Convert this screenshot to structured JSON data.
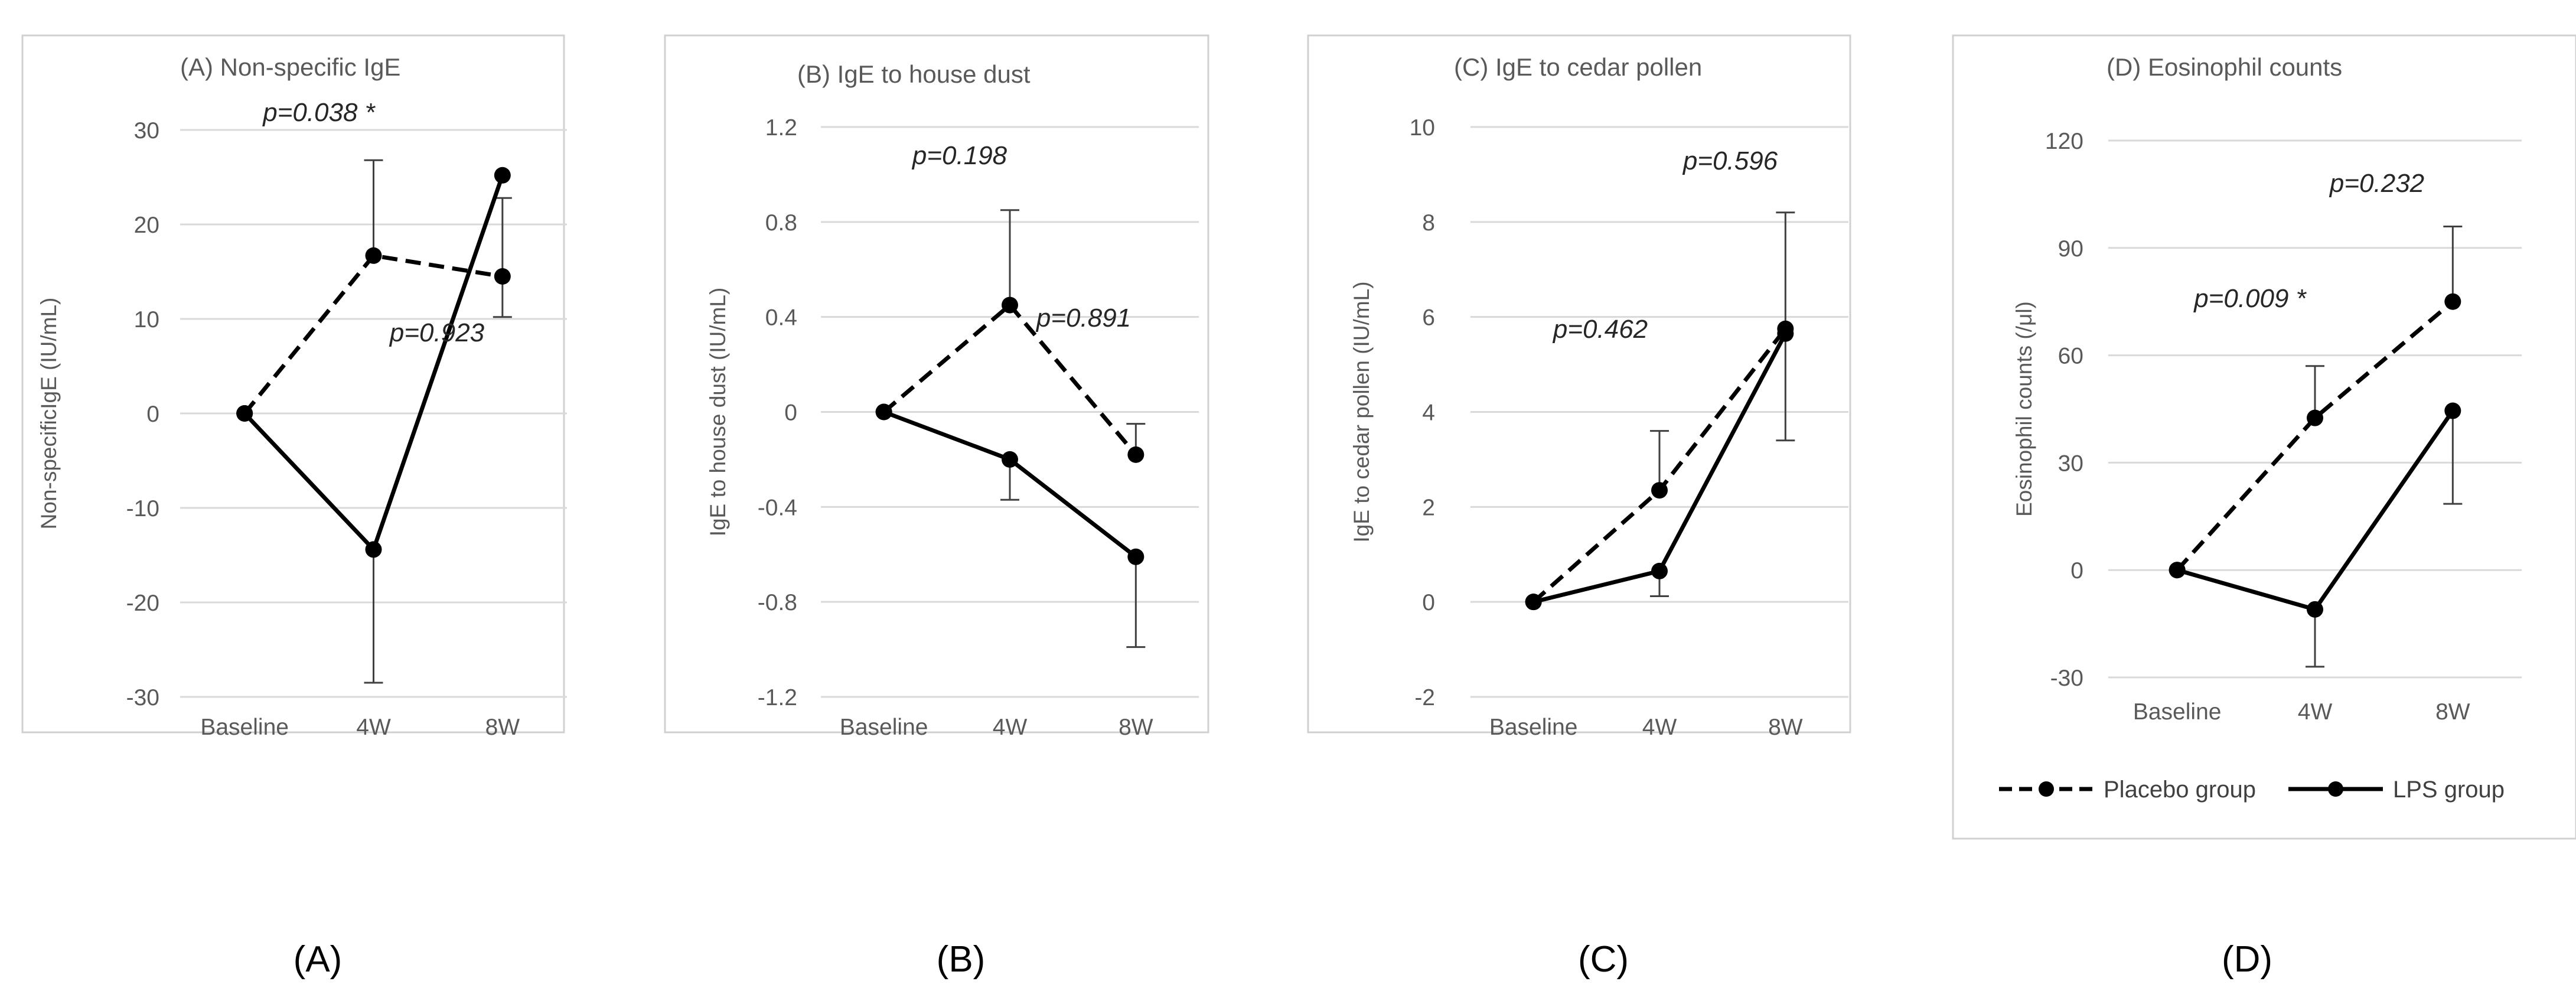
{
  "legend": {
    "placebo_label": "Placebo group",
    "lps_label": "LPS group",
    "placement": "bottom of panel D"
  },
  "chart_data": [
    {
      "type": "line",
      "panel_letter": "(A)",
      "title": "(A) Non-specific IgE",
      "xlabel": "",
      "ylabel": "Non-specificIgE (IU/mL)",
      "categories": [
        "Baseline",
        "4W",
        "8W"
      ],
      "ylim": [
        -30,
        30
      ],
      "yticks": [
        -30,
        -20,
        -10,
        0,
        10,
        20,
        30
      ],
      "ytick_labels": [
        "-30",
        "-20",
        "-10",
        "0",
        "10",
        "20",
        "30"
      ],
      "grid": true,
      "series": [
        {
          "name": "Placebo group",
          "style": "dashed",
          "values": [
            0,
            16.7,
            14.5
          ],
          "error_upper": [
            null,
            26.8,
            22.8
          ],
          "error_lower": [
            null,
            null,
            10.2
          ]
        },
        {
          "name": "LPS group",
          "style": "solid",
          "values": [
            0,
            -14.4,
            25.2
          ],
          "error_upper": [
            null,
            null,
            null
          ],
          "error_lower": [
            null,
            -28.5,
            null
          ]
        }
      ],
      "annotations": [
        {
          "text": "p=0.038 *",
          "at": "4W"
        },
        {
          "text": "p=0.923",
          "at": "8W"
        }
      ]
    },
    {
      "type": "line",
      "panel_letter": "(B)",
      "title": "(B) IgE to house dust",
      "xlabel": "",
      "ylabel": "IgE to house dust (IU/mL)",
      "categories": [
        "Baseline",
        "4W",
        "8W"
      ],
      "ylim": [
        -1.2,
        1.2
      ],
      "yticks": [
        -1.2,
        -0.8,
        -0.4,
        0,
        0.4,
        0.8,
        1.2
      ],
      "ytick_labels": [
        "-1.2",
        "-0.8",
        "-0.4",
        "0",
        "0.4",
        "0.8",
        "1.2"
      ],
      "grid": true,
      "series": [
        {
          "name": "Placebo group",
          "style": "dashed",
          "values": [
            0,
            0.45,
            -0.18
          ],
          "error_upper": [
            null,
            0.85,
            -0.05
          ],
          "error_lower": [
            null,
            null,
            null
          ]
        },
        {
          "name": "LPS group",
          "style": "solid",
          "values": [
            0,
            -0.2,
            -0.61
          ],
          "error_upper": [
            null,
            null,
            null
          ],
          "error_lower": [
            null,
            -0.37,
            -0.99
          ]
        }
      ],
      "annotations": [
        {
          "text": "p=0.198",
          "at": "4W"
        },
        {
          "text": "p=0.891",
          "at": "8W"
        }
      ]
    },
    {
      "type": "line",
      "panel_letter": "(C)",
      "title": "(C)  IgE to cedar pollen",
      "xlabel": "",
      "ylabel": "IgE to cedar pollen (IU/mL)",
      "categories": [
        "Baseline",
        "4W",
        "8W"
      ],
      "ylim": [
        -2,
        10
      ],
      "yticks": [
        -2,
        0,
        2,
        4,
        6,
        8,
        10
      ],
      "ytick_labels": [
        "-2",
        "0",
        "2",
        "4",
        "6",
        "8",
        "10"
      ],
      "grid": true,
      "series": [
        {
          "name": "Placebo group",
          "style": "dashed",
          "values": [
            0,
            2.35,
            5.75
          ],
          "error_upper": [
            null,
            3.6,
            8.2
          ],
          "error_lower": [
            null,
            null,
            null
          ]
        },
        {
          "name": "LPS group",
          "style": "solid",
          "values": [
            0,
            0.65,
            5.65
          ],
          "error_upper": [
            null,
            null,
            null
          ],
          "error_lower": [
            null,
            0.12,
            3.4
          ]
        }
      ],
      "annotations": [
        {
          "text": "p=0.462",
          "at": "4W"
        },
        {
          "text": "p=0.596",
          "at": "8W"
        }
      ]
    },
    {
      "type": "line",
      "panel_letter": "(D)",
      "title": "(D) Eosinophil counts",
      "xlabel": "",
      "ylabel": "Eosinophil counts (/μl)",
      "categories": [
        "Baseline",
        "4W",
        "8W"
      ],
      "ylim": [
        -30,
        120
      ],
      "yticks": [
        -30,
        0,
        30,
        60,
        90,
        120
      ],
      "ytick_labels": [
        "-30",
        "0",
        "30",
        "60",
        "90",
        "120"
      ],
      "grid": true,
      "series": [
        {
          "name": "Placebo group",
          "style": "dashed",
          "values": [
            0,
            42.5,
            75
          ],
          "error_upper": [
            null,
            57,
            96
          ],
          "error_lower": [
            null,
            null,
            null
          ]
        },
        {
          "name": "LPS group",
          "style": "solid",
          "values": [
            0,
            -11,
            44.5
          ],
          "error_upper": [
            null,
            null,
            null
          ],
          "error_lower": [
            null,
            -27,
            18.5
          ]
        }
      ],
      "annotations": [
        {
          "text": "p=0.009 *",
          "at": "4W"
        },
        {
          "text": "p=0.232",
          "at": "8W"
        }
      ]
    }
  ]
}
